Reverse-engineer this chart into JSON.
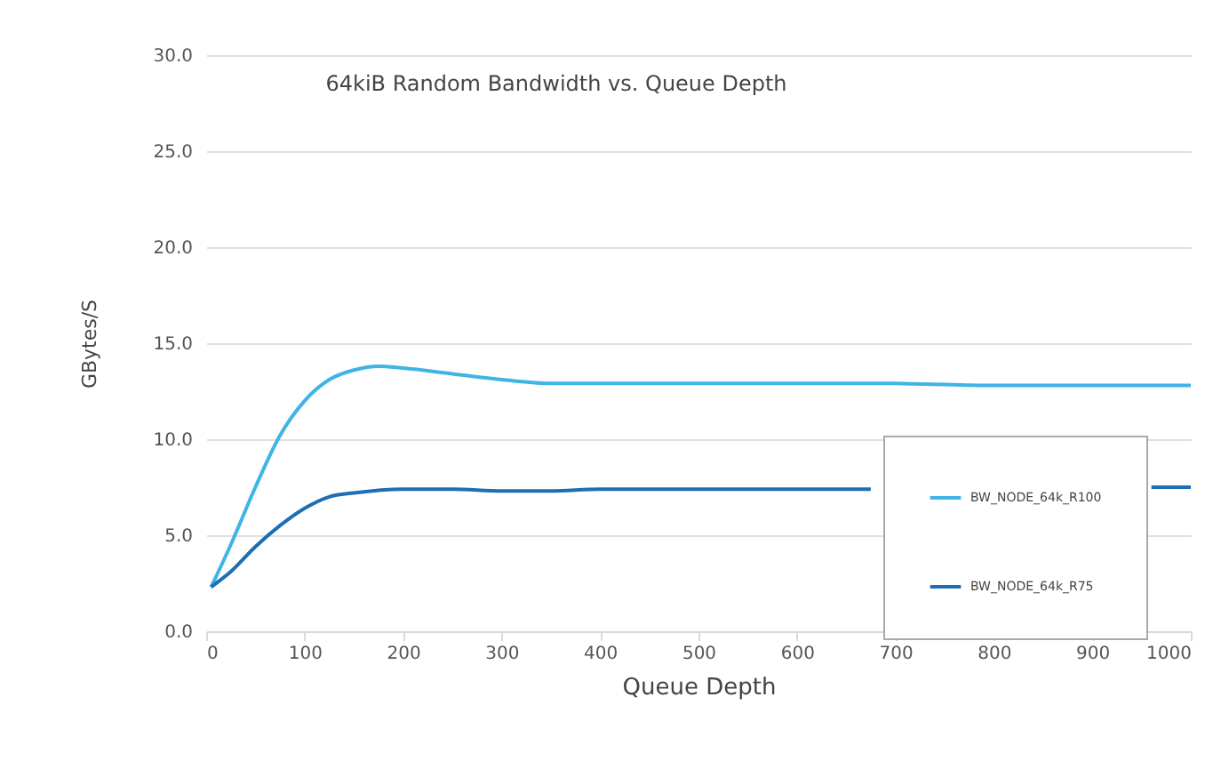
{
  "chart_data": {
    "type": "line",
    "title": "64kiB Random Bandwidth vs. Queue Depth",
    "xlabel": "Queue Depth",
    "ylabel": "GBytes/S",
    "series": [
      {
        "name": "BW_NODE_64k_R100",
        "color": "#3fb4e5",
        "x": [
          5,
          25,
          50,
          75,
          100,
          125,
          150,
          175,
          200,
          250,
          300,
          350,
          400,
          500,
          600,
          700,
          800,
          900,
          1000
        ],
        "values": [
          2.3,
          4.5,
          7.5,
          10.2,
          12.0,
          13.1,
          13.6,
          13.8,
          13.7,
          13.4,
          13.1,
          12.9,
          12.9,
          12.9,
          12.9,
          12.9,
          12.8,
          12.8,
          12.8
        ]
      },
      {
        "name": "BW_NODE_64k_R75",
        "color": "#1f6eb4",
        "x": [
          5,
          25,
          50,
          75,
          100,
          125,
          150,
          200,
          250,
          300,
          350,
          400,
          500,
          600,
          675,
          800,
          960,
          1000
        ],
        "values": [
          2.3,
          3.1,
          4.4,
          5.5,
          6.4,
          7.0,
          7.2,
          7.4,
          7.4,
          7.3,
          7.3,
          7.4,
          7.4,
          7.4,
          7.4,
          null,
          7.5,
          7.5
        ]
      }
    ],
    "xlim": [
      0,
      1000
    ],
    "xticks": [
      0,
      100,
      200,
      300,
      400,
      500,
      600,
      700,
      800,
      900,
      1000
    ],
    "ylim": [
      0,
      30
    ],
    "yticks": [
      {
        "value": 0,
        "label": "0.0"
      },
      {
        "value": 5,
        "label": "5.0"
      },
      {
        "value": 10,
        "label": "10.0"
      },
      {
        "value": 15,
        "label": "15.0"
      },
      {
        "value": 20,
        "label": "20.0"
      },
      {
        "value": 25,
        "label": "25.0"
      },
      {
        "value": 30,
        "label": "30.0"
      }
    ],
    "grid": "y",
    "legend": "right",
    "line_style": "solid"
  }
}
